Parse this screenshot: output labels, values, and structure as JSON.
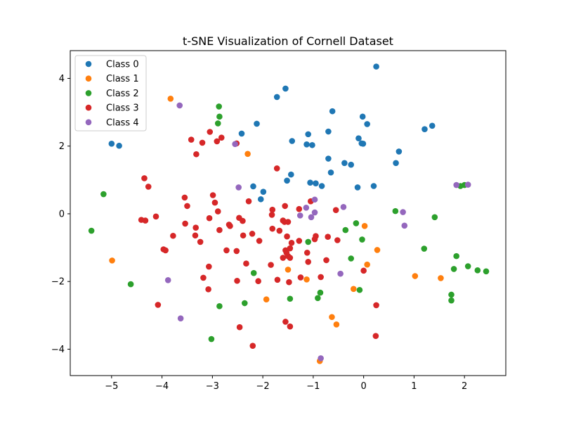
{
  "chart_data": {
    "type": "scatter",
    "title": "t-SNE Visualization of Cornell Dataset",
    "xlabel": "",
    "ylabel": "",
    "xlim": [
      -5.82,
      2.82
    ],
    "ylim": [
      -4.78,
      4.82
    ],
    "xticks": [
      -5,
      -4,
      -3,
      -2,
      -1,
      0,
      1,
      2
    ],
    "yticks": [
      -4,
      -2,
      0,
      2,
      4
    ],
    "grid": false,
    "legend_position": "top-left",
    "series": [
      {
        "name": "Class 0",
        "color": "#1f77b4",
        "points": [
          [
            0.25,
            4.35
          ],
          [
            -1.55,
            3.7
          ],
          [
            -1.72,
            3.45
          ],
          [
            -0.62,
            3.03
          ],
          [
            -0.02,
            2.87
          ],
          [
            0.07,
            2.65
          ],
          [
            -2.12,
            2.66
          ],
          [
            -0.7,
            2.43
          ],
          [
            -1.1,
            2.35
          ],
          [
            -2.42,
            2.37
          ],
          [
            1.21,
            2.5
          ],
          [
            1.36,
            2.6
          ],
          [
            -0.1,
            2.23
          ],
          [
            -0.04,
            2.08
          ],
          [
            -0.01,
            2.07
          ],
          [
            -1.42,
            2.15
          ],
          [
            -1.13,
            2.05
          ],
          [
            -1.02,
            2.03
          ],
          [
            0.7,
            1.84
          ],
          [
            -5.0,
            2.07
          ],
          [
            -4.85,
            2.01
          ],
          [
            -0.7,
            1.63
          ],
          [
            -0.38,
            1.5
          ],
          [
            -0.25,
            1.45
          ],
          [
            0.64,
            1.5
          ],
          [
            -0.65,
            1.22
          ],
          [
            -1.44,
            1.16
          ],
          [
            -1.52,
            0.98
          ],
          [
            -1.06,
            0.92
          ],
          [
            -0.95,
            0.9
          ],
          [
            -0.83,
            0.82
          ],
          [
            -0.12,
            0.78
          ],
          [
            0.2,
            0.82
          ],
          [
            -2.19,
            0.81
          ],
          [
            -1.99,
            0.65
          ],
          [
            -2.04,
            0.43
          ]
        ]
      },
      {
        "name": "Class 1",
        "color": "#ff7f0e",
        "points": [
          [
            -3.83,
            3.4
          ],
          [
            -2.3,
            1.77
          ],
          [
            0.02,
            -0.36
          ],
          [
            0.27,
            -1.07
          ],
          [
            -4.99,
            -1.38
          ],
          [
            0.07,
            -1.5
          ],
          [
            -1.5,
            -1.65
          ],
          [
            1.02,
            -1.84
          ],
          [
            1.53,
            -1.9
          ],
          [
            -1.13,
            -1.94
          ],
          [
            -0.2,
            -2.22
          ],
          [
            -1.93,
            -2.53
          ],
          [
            -0.63,
            -3.05
          ],
          [
            -0.54,
            -3.27
          ],
          [
            -0.87,
            -4.35
          ]
        ]
      },
      {
        "name": "Class 2",
        "color": "#2ca02c",
        "points": [
          [
            -2.87,
            3.17
          ],
          [
            -2.86,
            2.87
          ],
          [
            -2.89,
            2.67
          ],
          [
            -5.16,
            0.58
          ],
          [
            -5.4,
            -0.5
          ],
          [
            1.92,
            0.82
          ],
          [
            2.0,
            0.85
          ],
          [
            0.63,
            0.08
          ],
          [
            1.41,
            -0.1
          ],
          [
            -0.15,
            -0.28
          ],
          [
            -0.36,
            -0.48
          ],
          [
            -1.1,
            -0.83
          ],
          [
            -0.03,
            -0.76
          ],
          [
            1.2,
            -1.03
          ],
          [
            1.84,
            -1.25
          ],
          [
            -0.25,
            -1.32
          ],
          [
            1.79,
            -1.63
          ],
          [
            2.07,
            -1.55
          ],
          [
            2.26,
            -1.67
          ],
          [
            2.43,
            -1.7
          ],
          [
            -4.62,
            -2.08
          ],
          [
            -2.18,
            -1.75
          ],
          [
            -0.86,
            -2.33
          ],
          [
            -0.08,
            -2.25
          ],
          [
            1.74,
            -2.39
          ],
          [
            1.74,
            -2.56
          ],
          [
            -0.91,
            -2.49
          ],
          [
            -1.46,
            -2.51
          ],
          [
            -2.36,
            -2.64
          ],
          [
            -2.86,
            -2.73
          ],
          [
            -3.02,
            -3.7
          ]
        ]
      },
      {
        "name": "Class 3",
        "color": "#d62728",
        "points": [
          [
            -3.05,
            2.42
          ],
          [
            -2.82,
            2.25
          ],
          [
            -3.42,
            2.19
          ],
          [
            -3.2,
            2.1
          ],
          [
            -2.91,
            2.14
          ],
          [
            -2.52,
            2.08
          ],
          [
            -3.32,
            1.76
          ],
          [
            -1.72,
            1.34
          ],
          [
            -4.35,
            1.05
          ],
          [
            -4.27,
            0.8
          ],
          [
            -2.99,
            0.55
          ],
          [
            -3.55,
            0.48
          ],
          [
            -2.28,
            0.37
          ],
          [
            -2.95,
            0.33
          ],
          [
            -1.05,
            0.37
          ],
          [
            -3.5,
            0.23
          ],
          [
            -1.56,
            0.23
          ],
          [
            -1.81,
            0.12
          ],
          [
            -2.89,
            0.07
          ],
          [
            -1.28,
            0.14
          ],
          [
            -0.55,
            0.11
          ],
          [
            -4.12,
            -0.08
          ],
          [
            -3.06,
            -0.13
          ],
          [
            -1.82,
            -0.03
          ],
          [
            -4.41,
            -0.18
          ],
          [
            -4.33,
            -0.2
          ],
          [
            -2.47,
            -0.12
          ],
          [
            -2.4,
            -0.21
          ],
          [
            -1.6,
            -0.2
          ],
          [
            -1.57,
            -0.24
          ],
          [
            -1.5,
            -0.24
          ],
          [
            -3.54,
            -0.29
          ],
          [
            -2.67,
            -0.32
          ],
          [
            -2.65,
            -0.36
          ],
          [
            -3.33,
            -0.41
          ],
          [
            -1.81,
            -0.44
          ],
          [
            -2.86,
            -0.48
          ],
          [
            -1.67,
            -0.5
          ],
          [
            -2.21,
            -0.59
          ],
          [
            -3.78,
            -0.65
          ],
          [
            -3.34,
            -0.64
          ],
          [
            -2.39,
            -0.64
          ],
          [
            -1.52,
            -0.67
          ],
          [
            -0.95,
            -0.66
          ],
          [
            -0.71,
            -0.68
          ],
          [
            -0.97,
            -0.75
          ],
          [
            -0.52,
            -0.78
          ],
          [
            -3.24,
            -0.83
          ],
          [
            -2.07,
            -0.8
          ],
          [
            -1.28,
            -0.8
          ],
          [
            -1.43,
            -0.86
          ],
          [
            -1.46,
            -1.02
          ],
          [
            -1.55,
            -1.08
          ],
          [
            -1.53,
            -1.15
          ],
          [
            -2.72,
            -1.08
          ],
          [
            -2.52,
            -1.1
          ],
          [
            -3.97,
            -1.05
          ],
          [
            -3.93,
            -1.08
          ],
          [
            -1.12,
            -1.15
          ],
          [
            -1.6,
            -1.3
          ],
          [
            -1.5,
            -1.25
          ],
          [
            -1.46,
            -1.3
          ],
          [
            -0.74,
            -1.37
          ],
          [
            -1.1,
            -1.42
          ],
          [
            -1.84,
            -1.51
          ],
          [
            -2.33,
            -1.47
          ],
          [
            -3.07,
            -1.56
          ],
          [
            0.0,
            -1.68
          ],
          [
            -0.85,
            -1.87
          ],
          [
            -1.25,
            -1.88
          ],
          [
            -3.18,
            -1.89
          ],
          [
            -2.51,
            -1.98
          ],
          [
            -2.09,
            -1.99
          ],
          [
            -1.71,
            -1.95
          ],
          [
            -1.48,
            -2.02
          ],
          [
            -3.08,
            -2.23
          ],
          [
            -4.08,
            -2.69
          ],
          [
            0.25,
            -2.7
          ],
          [
            -1.55,
            -3.19
          ],
          [
            -1.46,
            -3.33
          ],
          [
            -2.46,
            -3.35
          ],
          [
            0.24,
            -3.61
          ],
          [
            -2.2,
            -3.9
          ]
        ]
      },
      {
        "name": "Class 4",
        "color": "#9467bd",
        "points": [
          [
            -3.65,
            3.2
          ],
          [
            -2.55,
            2.06
          ],
          [
            1.84,
            0.85
          ],
          [
            2.07,
            0.86
          ],
          [
            -2.48,
            0.78
          ],
          [
            -0.97,
            0.42
          ],
          [
            -0.4,
            0.2
          ],
          [
            -1.14,
            0.18
          ],
          [
            -0.97,
            0.04
          ],
          [
            0.78,
            0.05
          ],
          [
            -1.04,
            -0.1
          ],
          [
            -1.26,
            -0.05
          ],
          [
            0.81,
            -0.35
          ],
          [
            -0.46,
            -1.77
          ],
          [
            -3.88,
            -1.96
          ],
          [
            -3.63,
            -3.09
          ],
          [
            -0.85,
            -4.27
          ]
        ]
      }
    ]
  }
}
